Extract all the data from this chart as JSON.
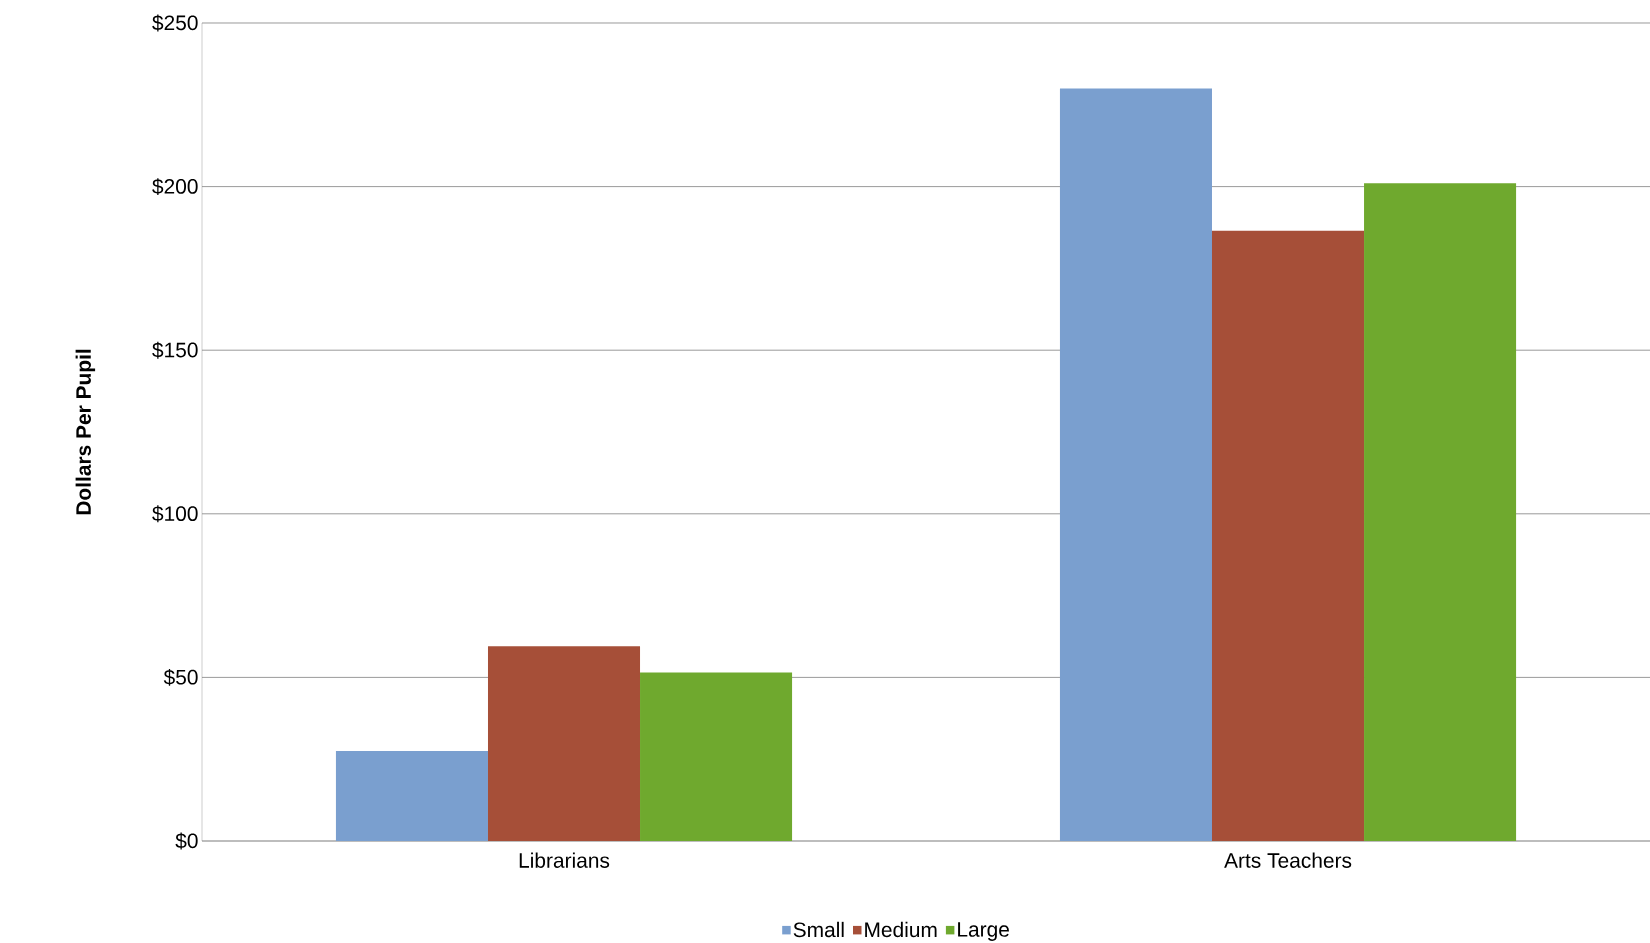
{
  "chart_data": {
    "type": "bar",
    "ylabel": "Dollars Per Pupil",
    "categories": [
      "Librarians",
      "Arts Teachers"
    ],
    "series": [
      {
        "name": "Small",
        "color": "#7a9fcf",
        "values": [
          27.5,
          230
        ]
      },
      {
        "name": "Medium",
        "color": "#a64f38",
        "values": [
          59.5,
          186.5
        ]
      },
      {
        "name": "Large",
        "color": "#6fa92e",
        "values": [
          51.5,
          201
        ]
      }
    ],
    "ylim": [
      0,
      250
    ],
    "yticks": [
      {
        "value": 0,
        "label": "$0"
      },
      {
        "value": 50,
        "label": "$50"
      },
      {
        "value": 100,
        "label": "$100"
      },
      {
        "value": 150,
        "label": "$150"
      },
      {
        "value": 200,
        "label": "$200"
      },
      {
        "value": 250,
        "label": "$250"
      }
    ],
    "grid": "y",
    "legend": "bottom"
  }
}
